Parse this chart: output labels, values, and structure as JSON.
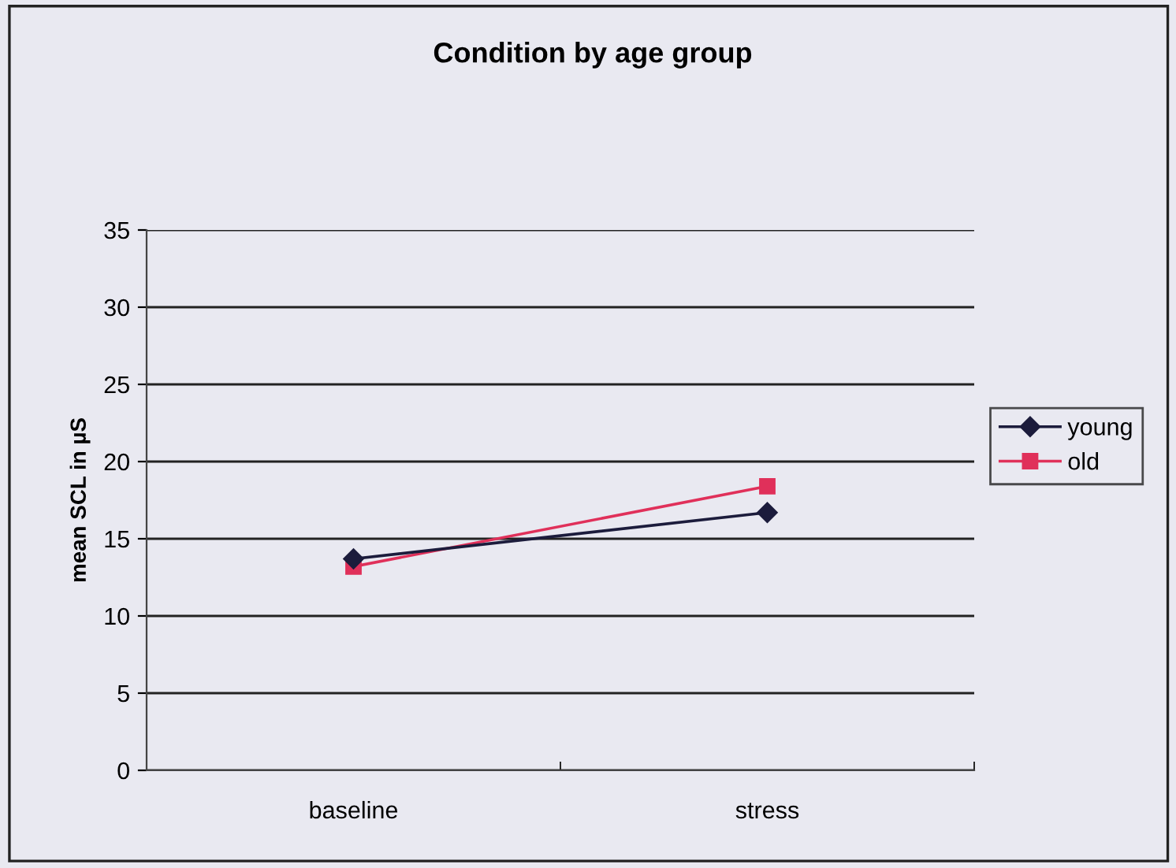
{
  "chart_data": {
    "type": "line",
    "title": "Condition by age group",
    "ylabel": "mean SCL in µS",
    "categories": [
      "baseline",
      "stress"
    ],
    "series": [
      {
        "name": "young",
        "color": "#1c1c3c",
        "marker": "diamond",
        "values": [
          13.7,
          16.7
        ]
      },
      {
        "name": "old",
        "color": "#e0305a",
        "marker": "square",
        "values": [
          13.2,
          18.4
        ]
      }
    ],
    "ylim": [
      0,
      35
    ],
    "yticks": [
      0,
      5,
      10,
      15,
      20,
      25,
      30,
      35
    ],
    "grid": "y",
    "legend": "right",
    "line_style": "solid"
  }
}
